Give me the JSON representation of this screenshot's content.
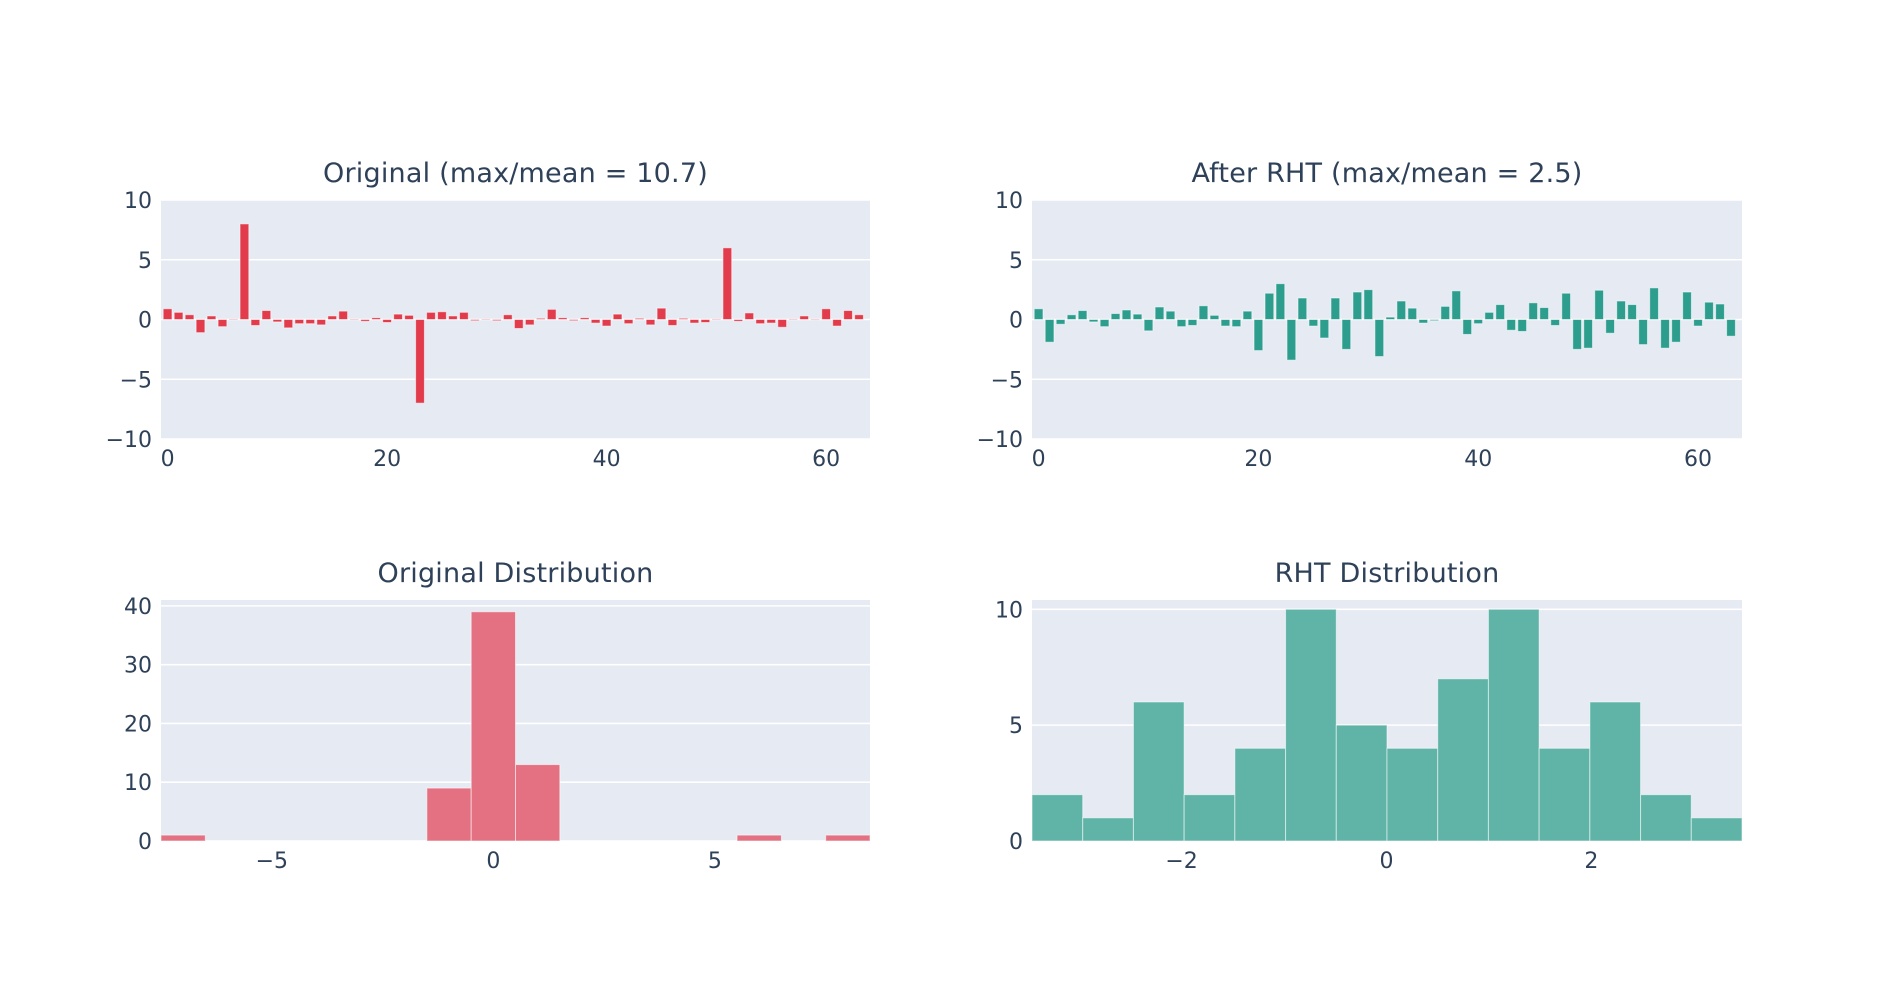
{
  "figure": {
    "background": "#ffffff",
    "plot_background": "#e5eaf3",
    "grid_color": "#ffffff",
    "text_color": "#2e4158"
  },
  "chart_data": [
    {
      "type": "bar",
      "title": "Original (max/mean = 10.7)",
      "series_name": "original-signal",
      "bar_color": "#e23b4b",
      "x_start": 0,
      "values": [
        0.9,
        0.6,
        0.4,
        -1.1,
        0.3,
        -0.6,
        0.05,
        8.0,
        -0.5,
        0.75,
        -0.2,
        -0.7,
        -0.35,
        -0.35,
        -0.45,
        0.3,
        0.7,
        -0.05,
        -0.15,
        0.15,
        -0.25,
        0.45,
        0.35,
        -7.0,
        0.6,
        0.65,
        0.3,
        0.6,
        -0.1,
        0.05,
        -0.1,
        0.4,
        -0.75,
        -0.45,
        0.1,
        0.85,
        0.15,
        -0.1,
        0.15,
        -0.3,
        -0.55,
        0.45,
        -0.35,
        0.1,
        -0.45,
        0.95,
        -0.5,
        0.1,
        -0.3,
        -0.25,
        0.05,
        6.0,
        -0.15,
        0.55,
        -0.35,
        -0.3,
        -0.65,
        0.05,
        0.3,
        -0.05,
        0.9,
        -0.55,
        0.75,
        0.4
      ],
      "xlim": [
        -0.6,
        64.0
      ],
      "ylim": [
        -10,
        10
      ],
      "xticks": [
        0,
        20,
        40,
        60
      ],
      "yticks": [
        10,
        5,
        0,
        -5,
        -10
      ],
      "grid": true,
      "legend": "none"
    },
    {
      "type": "bar",
      "title": "After RHT (max/mean = 2.5)",
      "series_name": "rht-signal",
      "bar_color": "#2d9e8e",
      "x_start": 0,
      "values": [
        0.9,
        -1.9,
        -0.4,
        0.4,
        0.75,
        -0.2,
        -0.6,
        0.5,
        0.8,
        0.45,
        -0.95,
        1.05,
        0.7,
        -0.6,
        -0.5,
        1.15,
        0.35,
        -0.55,
        -0.6,
        0.7,
        -2.6,
        2.2,
        3.0,
        -3.4,
        1.8,
        -0.55,
        -1.55,
        1.8,
        -2.5,
        2.3,
        2.5,
        -3.1,
        0.2,
        1.55,
        0.95,
        -0.3,
        -0.1,
        1.1,
        2.4,
        -1.25,
        -0.35,
        0.6,
        1.25,
        -0.9,
        -1.0,
        1.4,
        1.0,
        -0.5,
        2.2,
        -2.5,
        -2.4,
        2.45,
        -1.15,
        1.55,
        1.25,
        -2.1,
        2.65,
        -2.4,
        -1.9,
        2.3,
        -0.55,
        1.45,
        1.3,
        -1.4
      ],
      "xlim": [
        -0.6,
        64.0
      ],
      "ylim": [
        -10,
        10
      ],
      "xticks": [
        0,
        20,
        40,
        60
      ],
      "yticks": [
        10,
        5,
        0,
        -5,
        -10
      ],
      "grid": true,
      "legend": "none"
    },
    {
      "type": "histogram",
      "title": "Original Distribution",
      "series_name": "original-histogram",
      "bar_color": "#e37182",
      "bin_start": -7.5,
      "bin_width": 1.0,
      "counts": [
        1,
        0,
        0,
        0,
        0,
        0,
        9,
        39,
        13,
        0,
        0,
        0,
        0,
        1,
        0,
        1
      ],
      "xlim": [
        -7.5,
        8.5
      ],
      "ylim": [
        0,
        41
      ],
      "xticks": [
        -5,
        0,
        5
      ],
      "yticks": [
        0,
        10,
        20,
        30,
        40
      ],
      "grid": true,
      "legend": "none"
    },
    {
      "type": "histogram",
      "title": "RHT Distribution",
      "series_name": "rht-histogram",
      "bar_color": "#60b4a7",
      "bin_start": -3.46,
      "bin_width": 0.495,
      "counts": [
        2,
        1,
        6,
        2,
        4,
        10,
        5,
        4,
        7,
        10,
        4,
        6,
        2,
        1
      ],
      "xlim": [
        -3.46,
        3.47
      ],
      "ylim": [
        0,
        10.4
      ],
      "xticks": [
        -2,
        0,
        2
      ],
      "yticks": [
        0,
        5,
        10
      ],
      "grid": true,
      "legend": "none"
    }
  ]
}
